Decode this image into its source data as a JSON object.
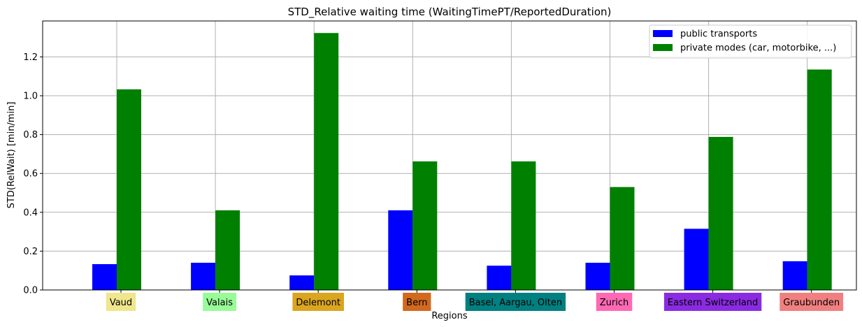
{
  "chart_data": {
    "type": "bar",
    "title": "STD_Relative waiting time (WaitingTimePT/ReportedDuration)",
    "xlabel": "Regions",
    "ylabel": "STD(RelWait) [min/min]",
    "ylim": [
      0,
      1.385
    ],
    "yticks": [
      "0.0",
      "0.2",
      "0.4",
      "0.6",
      "0.8",
      "1.0",
      "1.2"
    ],
    "grid": true,
    "legend_position": "top-right",
    "categories": [
      "Vaud",
      "Valais",
      "Delemont",
      "Bern",
      "Basel, Aargau, Olten",
      "Zurich",
      "Eastern Switzerland",
      "Graubunden"
    ],
    "category_colors": [
      "#F0E68C",
      "#98FB98",
      "#DAA520",
      "#D2691E",
      "#008080",
      "#FF69B4",
      "#8A2BE2",
      "#F08080"
    ],
    "series": [
      {
        "name": "public transports",
        "color": "#0000FF",
        "values": [
          0.133,
          0.14,
          0.075,
          0.41,
          0.125,
          0.14,
          0.315,
          0.148
        ]
      },
      {
        "name": "private modes (car, motorbike, ...)",
        "color": "#008000",
        "values": [
          1.033,
          0.41,
          1.323,
          0.662,
          0.662,
          0.53,
          0.788,
          1.135
        ]
      }
    ]
  }
}
